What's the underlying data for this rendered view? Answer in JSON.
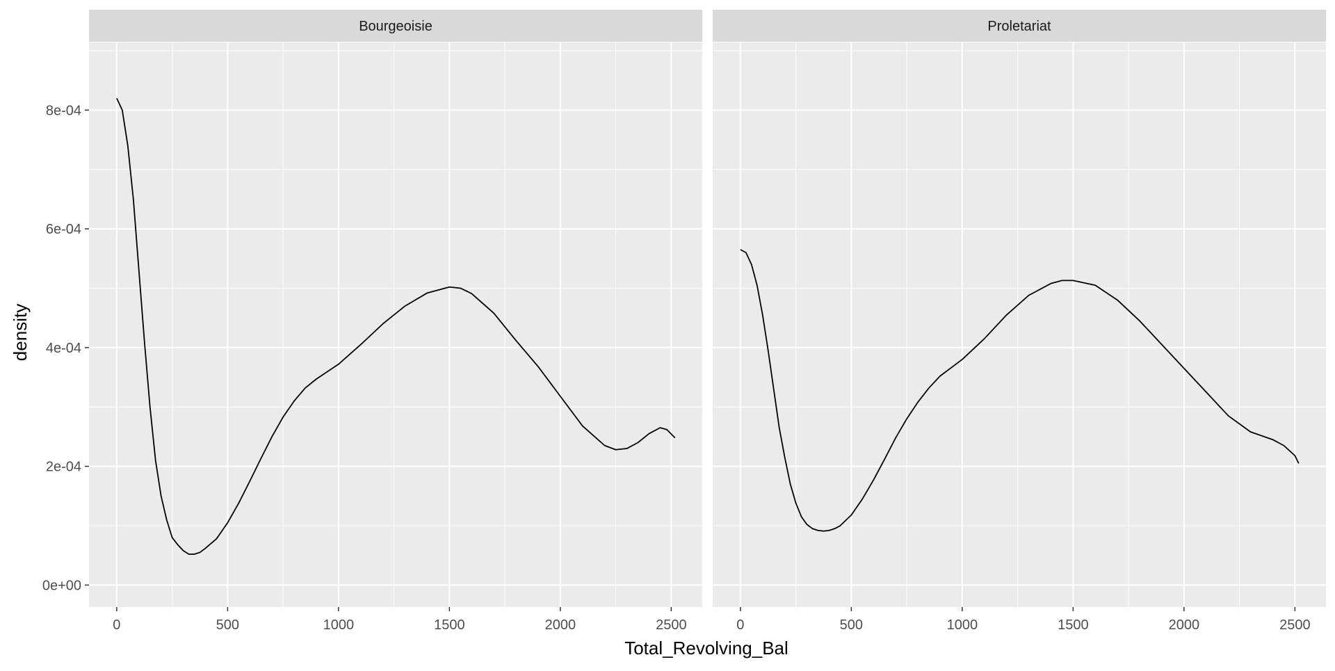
{
  "chart_data": {
    "type": "line",
    "subtype": "density",
    "facet_by": "",
    "xlabel": "Total_Revolving_Bal",
    "ylabel": "density",
    "xlim": [
      -125,
      2640
    ],
    "ylim": [
      -3.7e-05,
      0.000914
    ],
    "x_ticks": [
      0,
      500,
      1000,
      1500,
      2000,
      2500
    ],
    "x_tick_labels": [
      "0",
      "500",
      "1000",
      "1500",
      "2000",
      "2500"
    ],
    "y_ticks": [
      0,
      0.0002,
      0.0004,
      0.0006,
      0.0008
    ],
    "y_tick_labels": [
      "0e+00",
      "2e-04",
      "4e-04",
      "6e-04",
      "8e-04"
    ],
    "grid": true,
    "colors": {
      "panel_bg": "#ebebeb",
      "strip_bg": "#d9d9d9",
      "grid": "#ffffff",
      "line": "#000000",
      "tick_text": "#4d4d4d",
      "title_text": "#000000"
    },
    "panels": [
      {
        "label": "Bourgeoisie",
        "x": [
          0,
          25,
          50,
          75,
          100,
          125,
          150,
          175,
          200,
          225,
          250,
          275,
          300,
          325,
          350,
          375,
          400,
          450,
          500,
          550,
          600,
          650,
          700,
          750,
          800,
          850,
          900,
          1000,
          1100,
          1200,
          1300,
          1400,
          1500,
          1550,
          1600,
          1700,
          1800,
          1900,
          2000,
          2100,
          2200,
          2250,
          2300,
          2350,
          2400,
          2450,
          2480,
          2517
        ],
        "y": [
          0.00082,
          0.0008,
          0.00074,
          0.00065,
          0.00053,
          0.00041,
          0.0003,
          0.00021,
          0.00015,
          0.00011,
          8e-05,
          6.8e-05,
          5.8e-05,
          5.2e-05,
          5.2e-05,
          5.5e-05,
          6.2e-05,
          7.8e-05,
          0.000105,
          0.000138,
          0.000175,
          0.000213,
          0.00025,
          0.000283,
          0.00031,
          0.000332,
          0.000347,
          0.000372,
          0.000405,
          0.00044,
          0.00047,
          0.000492,
          0.000502,
          0.0005,
          0.000491,
          0.000458,
          0.000412,
          0.000368,
          0.000318,
          0.000268,
          0.000235,
          0.000228,
          0.00023,
          0.00024,
          0.000255,
          0.000265,
          0.000262,
          0.000248
        ]
      },
      {
        "label": "Proletariat",
        "x": [
          0,
          25,
          50,
          75,
          100,
          125,
          150,
          175,
          200,
          225,
          250,
          275,
          300,
          325,
          350,
          375,
          400,
          425,
          450,
          500,
          550,
          600,
          650,
          700,
          750,
          800,
          850,
          900,
          1000,
          1100,
          1200,
          1300,
          1400,
          1450,
          1500,
          1600,
          1700,
          1800,
          1900,
          2000,
          2100,
          2200,
          2300,
          2400,
          2450,
          2500,
          2517
        ],
        "y": [
          0.000565,
          0.00056,
          0.00054,
          0.000505,
          0.000455,
          0.000395,
          0.00033,
          0.000265,
          0.000215,
          0.00017,
          0.000138,
          0.000115,
          0.000102,
          9.5e-05,
          9.2e-05,
          9.1e-05,
          9.2e-05,
          9.5e-05,
          0.0001,
          0.000118,
          0.000145,
          0.000177,
          0.000212,
          0.000248,
          0.00028,
          0.000308,
          0.000332,
          0.000352,
          0.00038,
          0.000415,
          0.000455,
          0.000488,
          0.000508,
          0.000513,
          0.000513,
          0.000505,
          0.00048,
          0.000445,
          0.000405,
          0.000365,
          0.000325,
          0.000285,
          0.000258,
          0.000245,
          0.000235,
          0.000218,
          0.000205
        ]
      }
    ]
  }
}
